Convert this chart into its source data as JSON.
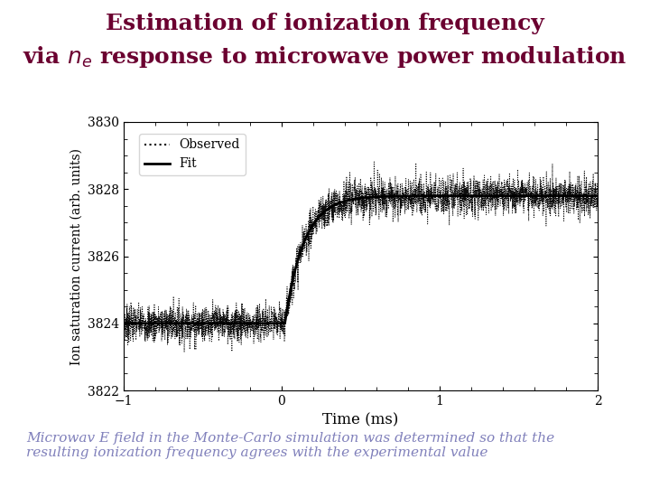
{
  "title_line1": "Estimation of ionization frequency",
  "title_line2": "via $n_e$ response to microwave power modulation",
  "title_color": "#6b0030",
  "title_fontsize": 18,
  "subtitle_text": "Microwav E field in the Monte-Carlo simulation was determined so that the\nresulting ionization frequency agrees with the experimental value",
  "subtitle_color": "#8080bb",
  "subtitle_fontsize": 11,
  "xlabel": "Time (ms)",
  "ylabel": "Ion saturation current (arb. units)",
  "xlim": [
    -1,
    2
  ],
  "ylim": [
    3822,
    3830
  ],
  "yticks": [
    3822,
    3824,
    3826,
    3828,
    3830
  ],
  "xticks": [
    -1,
    0,
    1,
    2
  ],
  "y_low": 3824.0,
  "y_high": 3827.8,
  "noise_amp": 0.28,
  "tau": 0.12,
  "t0": 0.02,
  "legend_observed": "Observed",
  "legend_fit": "Fit",
  "background_color": "#ffffff"
}
